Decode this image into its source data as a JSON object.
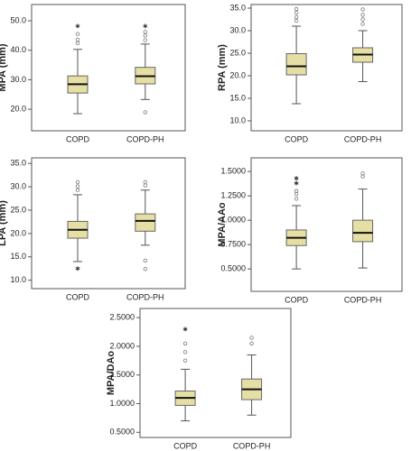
{
  "chart_data": [
    {
      "type": "box",
      "y_label": "MPA (mm)",
      "categories": [
        "COPD",
        "COPD-PH"
      ],
      "color": "#e6dfa5",
      "ylim": [
        12.7,
        55.5
      ],
      "yticks": [
        {
          "value": 20,
          "label": "20.0"
        },
        {
          "value": 30,
          "label": "30.0"
        },
        {
          "value": 40,
          "label": "40.0"
        },
        {
          "value": 50,
          "label": "50.0"
        }
      ],
      "boxes": [
        {
          "whislo": 18.5,
          "q1": 25.5,
          "med": 28.5,
          "q3": 31.3,
          "whishi": 40.3,
          "outliers": [
            42.4,
            43.6,
            45.5
          ],
          "extremes": [
            48.2
          ]
        },
        {
          "whislo": 23.3,
          "q1": 28.6,
          "med": 31.2,
          "q3": 34.2,
          "whishi": 42.1,
          "outliers": [
            19.0,
            43.4,
            45.0,
            46.2
          ],
          "extremes": [
            48.2
          ]
        }
      ]
    },
    {
      "type": "box",
      "y_label": "RPA (mm)",
      "categories": [
        "COPD",
        "COPD-PH"
      ],
      "color": "#e6dfa5",
      "ylim": [
        7.8,
        35.8
      ],
      "yticks": [
        {
          "value": 10,
          "label": "10.0"
        },
        {
          "value": 15,
          "label": "15.0"
        },
        {
          "value": 20,
          "label": "20.0"
        },
        {
          "value": 25,
          "label": "25.0"
        },
        {
          "value": 30,
          "label": "30.0"
        },
        {
          "value": 35,
          "label": "35.0"
        }
      ],
      "boxes": [
        {
          "whislo": 13.8,
          "q1": 20.2,
          "med": 22.1,
          "q3": 24.9,
          "whishi": 31.0,
          "outliers": [
            32.2,
            33.0,
            34.0,
            34.8
          ]
        },
        {
          "whislo": 18.7,
          "q1": 23.0,
          "med": 24.7,
          "q3": 26.2,
          "whishi": 30.0,
          "outliers": [
            31.5,
            32.5,
            33.5,
            34.7
          ]
        }
      ]
    },
    {
      "type": "box",
      "y_label": "LPA (mm)",
      "categories": [
        "COPD",
        "COPD-PH"
      ],
      "color": "#e6dfa5",
      "ylim": [
        8.2,
        36.2
      ],
      "yticks": [
        {
          "value": 10,
          "label": "10.0"
        },
        {
          "value": 15,
          "label": "15.0"
        },
        {
          "value": 20,
          "label": "20.0"
        },
        {
          "value": 25,
          "label": "25.0"
        },
        {
          "value": 30,
          "label": "30.0"
        },
        {
          "value": 35,
          "label": "35.0"
        }
      ],
      "boxes": [
        {
          "whislo": 14.0,
          "q1": 19.0,
          "med": 20.8,
          "q3": 22.6,
          "whishi": 28.3,
          "outliers": [
            29.3,
            30.1,
            31.0
          ],
          "extremes": [
            12.5
          ]
        },
        {
          "whislo": 17.5,
          "q1": 20.5,
          "med": 22.7,
          "q3": 24.2,
          "whishi": 29.3,
          "outliers": [
            12.4,
            14.2,
            30.3,
            31.0
          ]
        }
      ]
    },
    {
      "type": "box",
      "y_label": "MPA/AAo",
      "categories": [
        "COPD",
        "COPD-PH"
      ],
      "color": "#e6dfa5",
      "ylim": [
        0.27,
        1.64
      ],
      "yticks": [
        {
          "value": 0.5,
          "label": "0.5000"
        },
        {
          "value": 0.75,
          "label": "0.7500"
        },
        {
          "value": 1,
          "label": "1.0000"
        },
        {
          "value": 1.25,
          "label": "1.2500"
        },
        {
          "value": 1.5,
          "label": "1.5000"
        }
      ],
      "boxes": [
        {
          "whislo": 0.5,
          "q1": 0.74,
          "med": 0.82,
          "q3": 0.9,
          "whishi": 1.15,
          "outliers": [
            1.22,
            1.27,
            1.3
          ],
          "extremes": [
            1.38,
            1.43
          ]
        },
        {
          "whislo": 0.51,
          "q1": 0.78,
          "med": 0.87,
          "q3": 1.0,
          "whishi": 1.32,
          "outliers": [
            1.45,
            1.48
          ]
        }
      ]
    },
    {
      "type": "box",
      "y_label": "MPA/DAo",
      "categories": [
        "COPD",
        "COPD-PH"
      ],
      "color": "#e6dfa5",
      "ylim": [
        0.41,
        2.66
      ],
      "yticks": [
        {
          "value": 0.5,
          "label": "0.5000"
        },
        {
          "value": 1,
          "label": "1.0000"
        },
        {
          "value": 1.5,
          "label": "1.5000"
        },
        {
          "value": 2,
          "label": "2.0000"
        },
        {
          "value": 2.5,
          "label": "2.5000"
        }
      ],
      "boxes": [
        {
          "whislo": 0.7,
          "q1": 0.97,
          "med": 1.1,
          "q3": 1.22,
          "whishi": 1.6,
          "outliers": [
            1.75,
            1.9,
            2.05
          ],
          "extremes": [
            2.3
          ]
        },
        {
          "whislo": 0.8,
          "q1": 1.07,
          "med": 1.25,
          "q3": 1.43,
          "whishi": 1.85,
          "outliers": [
            2.05,
            2.15
          ]
        }
      ]
    }
  ]
}
